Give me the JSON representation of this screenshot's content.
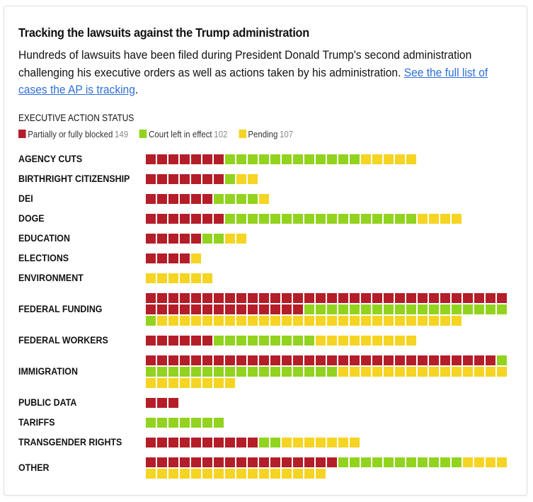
{
  "header": {
    "title": "Tracking the lawsuits against the Trump administration",
    "subtitle_text": "Hundreds of lawsuits have been filed during President Donald Trump's second administration challenging his executive orders as well as actions taken by his administration. ",
    "subtitle_link": "See the full list of cases the AP is tracking",
    "subtitle_end": "."
  },
  "legend": {
    "title": "EXECUTIVE ACTION STATUS",
    "items": [
      {
        "key": "blocked",
        "label": "Partially or fully blocked",
        "count": "149",
        "color": "#b41e29"
      },
      {
        "key": "in_effect",
        "label": "Court left in effect",
        "count": "102",
        "color": "#92d31f"
      },
      {
        "key": "pending",
        "label": "Pending",
        "count": "107",
        "color": "#f5d423"
      }
    ]
  },
  "chart_data": {
    "type": "waffle",
    "title": "Tracking the lawsuits against the Trump administration",
    "unit": "one square = one lawsuit",
    "squares_per_row": 32,
    "series": [
      {
        "name": "Partially or fully blocked",
        "key": "blocked",
        "total": 149
      },
      {
        "name": "Court left in effect",
        "key": "in_effect",
        "total": 102
      },
      {
        "name": "Pending",
        "key": "pending",
        "total": 107
      }
    ],
    "categories": [
      {
        "label": "AGENCY CUTS",
        "blocked": 7,
        "in_effect": 12,
        "pending": 5
      },
      {
        "label": "BIRTHRIGHT CITIZENSHIP",
        "blocked": 7,
        "in_effect": 1,
        "pending": 2
      },
      {
        "label": "DEI",
        "blocked": 6,
        "in_effect": 4,
        "pending": 1
      },
      {
        "label": "DOGE",
        "blocked": 7,
        "in_effect": 17,
        "pending": 4
      },
      {
        "label": "EDUCATION",
        "blocked": 5,
        "in_effect": 2,
        "pending": 2
      },
      {
        "label": "ELECTIONS",
        "blocked": 4,
        "in_effect": 0,
        "pending": 1
      },
      {
        "label": "ENVIRONMENT",
        "blocked": 0,
        "in_effect": 0,
        "pending": 6
      },
      {
        "label": "FEDERAL FUNDING",
        "blocked": 46,
        "in_effect": 19,
        "pending": 27
      },
      {
        "label": "FEDERAL WORKERS",
        "blocked": 6,
        "in_effect": 9,
        "pending": 9
      },
      {
        "label": "IMMIGRATION",
        "blocked": 31,
        "in_effect": 18,
        "pending": 23
      },
      {
        "label": "PUBLIC DATA",
        "blocked": 3,
        "in_effect": 0,
        "pending": 0
      },
      {
        "label": "TARIFFS",
        "blocked": 0,
        "in_effect": 7,
        "pending": 0
      },
      {
        "label": "TRANSGENDER RIGHTS",
        "blocked": 10,
        "in_effect": 2,
        "pending": 7
      },
      {
        "label": "OTHER",
        "blocked": 17,
        "in_effect": 11,
        "pending": 20
      }
    ]
  }
}
